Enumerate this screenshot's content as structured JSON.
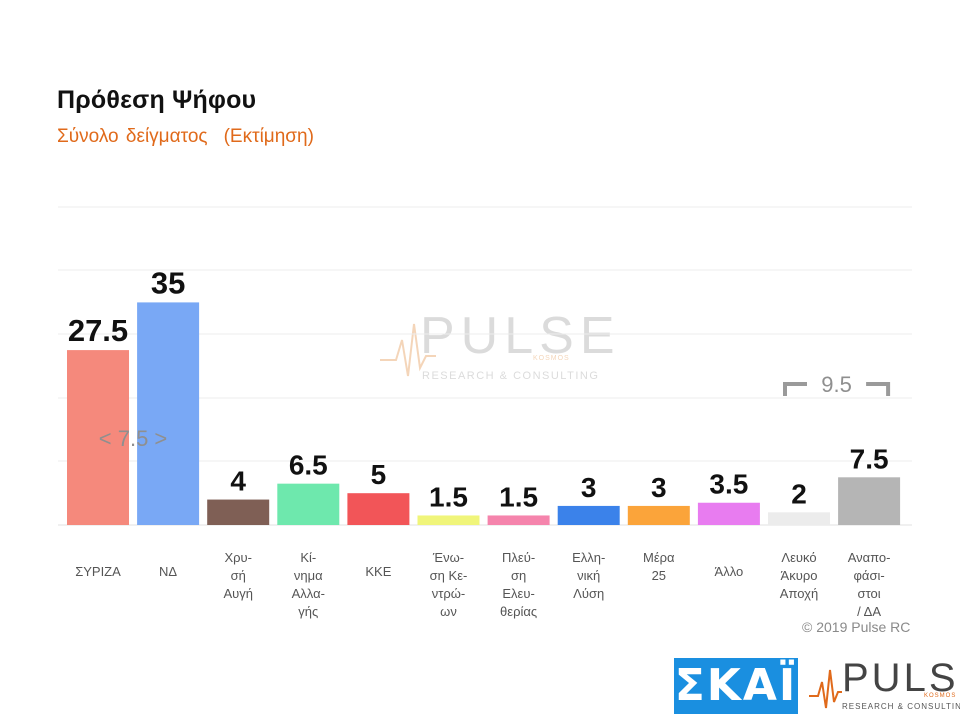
{
  "header": {
    "title": "Πρόθεση Ψήφου",
    "subtitle_main": "Σύνολο δείγματος",
    "subtitle_note": "(Εκτίμηση)"
  },
  "chart_data": {
    "type": "bar",
    "title": "Πρόθεση Ψήφου",
    "subtitle": "Σύνολο δείγματος (Εκτίμηση)",
    "categories": [
      [
        "ΣΥΡΙΖΑ"
      ],
      [
        "ΝΔ"
      ],
      [
        "Χρυ-",
        "σή",
        "Αυγή"
      ],
      [
        "Κί-",
        "νημα",
        "Αλλα-",
        "γής"
      ],
      [
        "ΚΚΕ"
      ],
      [
        "Ένω-",
        "ση Κε-",
        "ντρώ-",
        "ων"
      ],
      [
        "Πλεύ-",
        "ση",
        "Ελευ-",
        "θερίας"
      ],
      [
        "Ελλη-",
        "νική",
        "Λύση"
      ],
      [
        "Μέρα",
        "25"
      ],
      [
        "Άλλο"
      ],
      [
        "Λευκό",
        "Άκυρο",
        "Αποχή"
      ],
      [
        "Αναπο-",
        "φάσι-",
        "στοι",
        "/ ΔΑ"
      ]
    ],
    "values": [
      27.5,
      35,
      4,
      6.5,
      5,
      1.5,
      1.5,
      3,
      3,
      3.5,
      2,
      7.5
    ],
    "value_labels": [
      "27.5",
      "35",
      "4",
      "6.5",
      "5",
      "1.5",
      "1.5",
      "3",
      "3",
      "3.5",
      "2",
      "7.5"
    ],
    "colors": [
      "#f5897c",
      "#79a8f5",
      "#7f5f55",
      "#6ee8ad",
      "#f25558",
      "#f0f57a",
      "#f584ac",
      "#3b82ea",
      "#fba43a",
      "#e87cf0",
      "#ececec",
      "#b5b5b5"
    ],
    "ylim": [
      0,
      50
    ],
    "grid": true,
    "annotations": [
      {
        "text": "< 7.5 >",
        "between": [
          "ΣΥΡΙΖΑ",
          "ΝΔ"
        ]
      },
      {
        "text": "9.5",
        "bracket_over": [
          "Λευκό Άκυρο Αποχή",
          "Αναποφάσιστοι / ΔΑ"
        ]
      }
    ]
  },
  "watermark": {
    "word": "PULSE",
    "small": "KOSMOS",
    "sub": "RESEARCH & CONSULTING"
  },
  "footer": {
    "copyright": "© 2019 Pulse RC",
    "skai_logo": "ΣΚΑΪ",
    "pulse_logo_word": "PULSE",
    "pulse_logo_small": "KOSMOS",
    "pulse_logo_sub": "RESEARCH & CONSULTING"
  }
}
